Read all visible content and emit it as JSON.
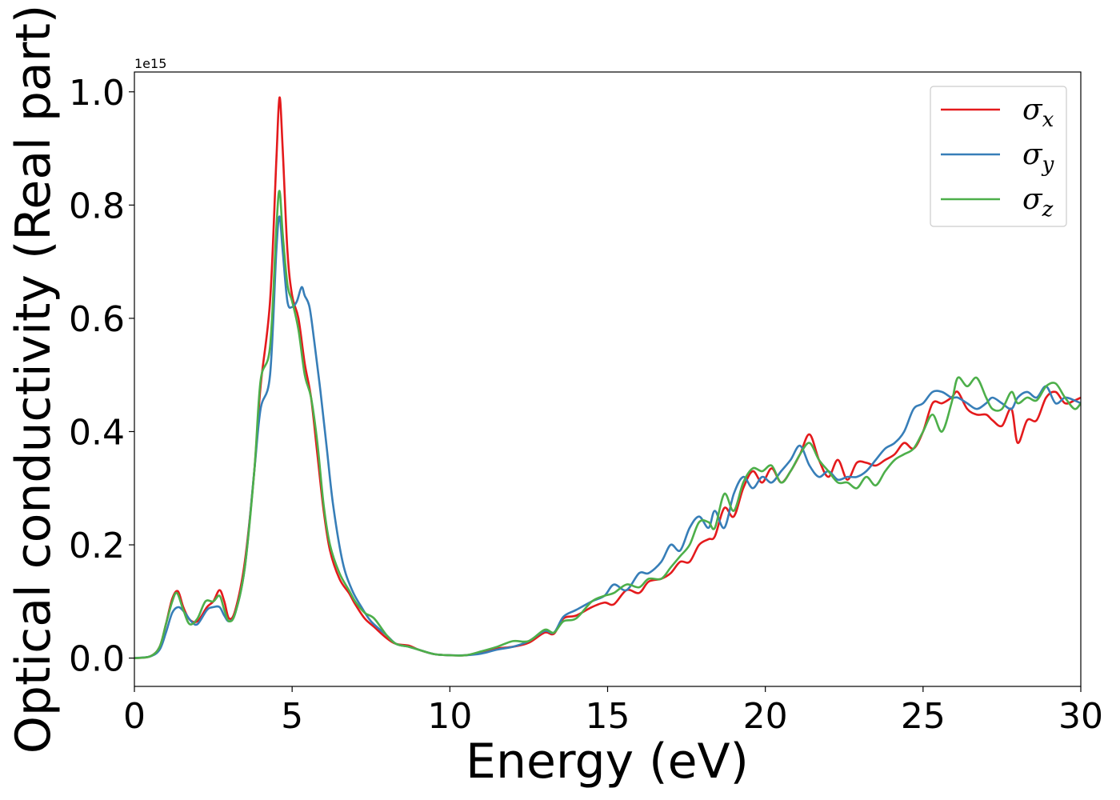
{
  "chart_data": {
    "type": "line",
    "title": "",
    "xlabel": "Energy (eV)",
    "ylabel": "Optical conductivity (Real part)",
    "y_offset_label": "1e15",
    "xlim": [
      0,
      30
    ],
    "ylim": [
      -0.05,
      1.035
    ],
    "xticks": [
      0,
      5,
      10,
      15,
      20,
      25,
      30
    ],
    "xtick_labels": [
      "0",
      "5",
      "10",
      "15",
      "20",
      "25",
      "30"
    ],
    "yticks": [
      0.0,
      0.2,
      0.4,
      0.6,
      0.8,
      1.0
    ],
    "ytick_labels": [
      "0.0",
      "0.2",
      "0.4",
      "0.6",
      "0.8",
      "1.0"
    ],
    "grid": false,
    "legend_position": "top-right",
    "series": [
      {
        "name": "σx",
        "base": "σ",
        "sub": "x",
        "color": "#e41a1c",
        "x": [
          0,
          0.5,
          0.8,
          1.0,
          1.2,
          1.38,
          1.55,
          1.75,
          2.0,
          2.3,
          2.5,
          2.7,
          2.85,
          3.0,
          3.2,
          3.5,
          3.8,
          4.0,
          4.3,
          4.5,
          4.6,
          4.7,
          4.85,
          5.0,
          5.2,
          5.4,
          5.6,
          5.8,
          6.0,
          6.2,
          6.5,
          6.8,
          7.0,
          7.3,
          7.6,
          8.0,
          8.3,
          8.7,
          9.0,
          9.5,
          10.0,
          10.5,
          11.0,
          11.5,
          12.0,
          12.5,
          13.0,
          13.3,
          13.6,
          14.0,
          14.5,
          14.9,
          15.2,
          15.6,
          16.0,
          16.3,
          16.7,
          17.0,
          17.3,
          17.6,
          17.9,
          18.2,
          18.4,
          18.7,
          19.0,
          19.3,
          19.6,
          19.9,
          20.2,
          20.5,
          20.8,
          21.1,
          21.4,
          21.7,
          22.0,
          22.3,
          22.6,
          22.9,
          23.2,
          23.5,
          23.8,
          24.1,
          24.4,
          24.7,
          25.0,
          25.3,
          25.6,
          25.9,
          26.1,
          26.4,
          26.7,
          27.0,
          27.2,
          27.5,
          27.8,
          28.0,
          28.3,
          28.6,
          28.9,
          29.2,
          29.5,
          29.8,
          30.0
        ],
        "values": [
          0.0,
          0.003,
          0.02,
          0.06,
          0.105,
          0.118,
          0.09,
          0.068,
          0.065,
          0.09,
          0.1,
          0.12,
          0.1,
          0.07,
          0.085,
          0.17,
          0.33,
          0.48,
          0.63,
          0.88,
          0.99,
          0.9,
          0.72,
          0.64,
          0.6,
          0.52,
          0.46,
          0.36,
          0.26,
          0.19,
          0.14,
          0.115,
          0.095,
          0.07,
          0.055,
          0.035,
          0.025,
          0.022,
          0.015,
          0.007,
          0.005,
          0.005,
          0.01,
          0.017,
          0.02,
          0.027,
          0.045,
          0.043,
          0.07,
          0.075,
          0.09,
          0.098,
          0.095,
          0.12,
          0.115,
          0.135,
          0.14,
          0.15,
          0.17,
          0.17,
          0.2,
          0.21,
          0.215,
          0.265,
          0.25,
          0.3,
          0.33,
          0.31,
          0.335,
          0.31,
          0.33,
          0.36,
          0.395,
          0.35,
          0.32,
          0.35,
          0.315,
          0.345,
          0.345,
          0.34,
          0.35,
          0.36,
          0.38,
          0.37,
          0.4,
          0.45,
          0.45,
          0.46,
          0.47,
          0.44,
          0.43,
          0.43,
          0.42,
          0.41,
          0.44,
          0.38,
          0.42,
          0.42,
          0.46,
          0.47,
          0.45,
          0.455,
          0.46
        ]
      },
      {
        "name": "σy",
        "base": "σ",
        "sub": "y",
        "color": "#377eb8",
        "x": [
          0,
          0.5,
          0.8,
          1.0,
          1.2,
          1.4,
          1.6,
          1.8,
          2.0,
          2.3,
          2.5,
          2.7,
          2.85,
          3.0,
          3.2,
          3.5,
          3.8,
          4.0,
          4.3,
          4.5,
          4.6,
          4.7,
          4.85,
          5.0,
          5.15,
          5.3,
          5.4,
          5.55,
          5.7,
          5.9,
          6.1,
          6.3,
          6.6,
          6.9,
          7.2,
          7.5,
          8.0,
          8.3,
          8.7,
          9.0,
          9.5,
          10.0,
          10.5,
          11.0,
          11.5,
          12.0,
          12.5,
          13.0,
          13.3,
          13.6,
          14.0,
          14.5,
          14.9,
          15.2,
          15.6,
          16.0,
          16.3,
          16.7,
          17.0,
          17.3,
          17.6,
          17.9,
          18.2,
          18.4,
          18.7,
          19.0,
          19.3,
          19.6,
          19.9,
          20.2,
          20.5,
          20.8,
          21.1,
          21.4,
          21.7,
          22.0,
          22.3,
          22.6,
          22.9,
          23.2,
          23.5,
          23.8,
          24.1,
          24.4,
          24.7,
          25.0,
          25.3,
          25.6,
          25.9,
          26.1,
          26.4,
          26.7,
          27.0,
          27.2,
          27.5,
          27.8,
          28.0,
          28.3,
          28.6,
          28.9,
          29.2,
          29.5,
          29.8,
          30.0
        ],
        "values": [
          0.0,
          0.003,
          0.015,
          0.045,
          0.08,
          0.09,
          0.08,
          0.065,
          0.06,
          0.085,
          0.09,
          0.09,
          0.075,
          0.065,
          0.08,
          0.16,
          0.33,
          0.44,
          0.5,
          0.72,
          0.78,
          0.72,
          0.63,
          0.62,
          0.63,
          0.655,
          0.64,
          0.62,
          0.56,
          0.47,
          0.37,
          0.27,
          0.17,
          0.12,
          0.09,
          0.065,
          0.04,
          0.025,
          0.02,
          0.015,
          0.007,
          0.005,
          0.005,
          0.008,
          0.015,
          0.02,
          0.03,
          0.048,
          0.045,
          0.073,
          0.085,
          0.1,
          0.11,
          0.13,
          0.12,
          0.15,
          0.15,
          0.17,
          0.2,
          0.19,
          0.23,
          0.25,
          0.23,
          0.26,
          0.23,
          0.29,
          0.32,
          0.3,
          0.32,
          0.31,
          0.33,
          0.35,
          0.375,
          0.34,
          0.32,
          0.33,
          0.315,
          0.32,
          0.32,
          0.33,
          0.35,
          0.37,
          0.38,
          0.4,
          0.44,
          0.45,
          0.47,
          0.47,
          0.46,
          0.46,
          0.45,
          0.44,
          0.45,
          0.46,
          0.45,
          0.44,
          0.46,
          0.47,
          0.46,
          0.48,
          0.45,
          0.46,
          0.455,
          0.45
        ]
      },
      {
        "name": "σz",
        "base": "σ",
        "sub": "z",
        "color": "#4daf4a",
        "x": [
          0,
          0.5,
          0.8,
          1.0,
          1.2,
          1.35,
          1.55,
          1.75,
          2.0,
          2.25,
          2.5,
          2.7,
          2.85,
          3.0,
          3.2,
          3.5,
          3.8,
          4.0,
          4.3,
          4.5,
          4.6,
          4.7,
          4.85,
          5.0,
          5.2,
          5.4,
          5.6,
          5.8,
          6.0,
          6.2,
          6.5,
          6.8,
          7.0,
          7.3,
          7.6,
          8.0,
          8.3,
          8.7,
          9.0,
          9.5,
          10.0,
          10.5,
          11.0,
          11.5,
          12.0,
          12.5,
          13.0,
          13.3,
          13.6,
          14.0,
          14.5,
          14.9,
          15.2,
          15.6,
          16.0,
          16.3,
          16.7,
          17.0,
          17.3,
          17.6,
          17.9,
          18.2,
          18.4,
          18.7,
          19.0,
          19.3,
          19.6,
          19.9,
          20.2,
          20.5,
          20.8,
          21.1,
          21.4,
          21.7,
          22.0,
          22.3,
          22.6,
          22.9,
          23.2,
          23.5,
          23.8,
          24.1,
          24.4,
          24.7,
          25.0,
          25.3,
          25.6,
          25.9,
          26.1,
          26.4,
          26.7,
          27.0,
          27.2,
          27.5,
          27.8,
          28.0,
          28.3,
          28.6,
          28.9,
          29.2,
          29.5,
          29.8,
          30.0
        ],
        "values": [
          0.0,
          0.003,
          0.02,
          0.06,
          0.1,
          0.115,
          0.085,
          0.06,
          0.07,
          0.1,
          0.1,
          0.11,
          0.085,
          0.065,
          0.08,
          0.16,
          0.33,
          0.49,
          0.55,
          0.76,
          0.825,
          0.75,
          0.66,
          0.63,
          0.58,
          0.5,
          0.46,
          0.38,
          0.27,
          0.2,
          0.15,
          0.12,
          0.1,
          0.08,
          0.07,
          0.04,
          0.025,
          0.02,
          0.015,
          0.007,
          0.005,
          0.005,
          0.012,
          0.02,
          0.03,
          0.03,
          0.05,
          0.045,
          0.065,
          0.07,
          0.1,
          0.11,
          0.115,
          0.13,
          0.125,
          0.14,
          0.14,
          0.16,
          0.18,
          0.2,
          0.24,
          0.24,
          0.23,
          0.29,
          0.26,
          0.31,
          0.335,
          0.33,
          0.34,
          0.31,
          0.33,
          0.36,
          0.38,
          0.35,
          0.33,
          0.31,
          0.31,
          0.3,
          0.32,
          0.305,
          0.33,
          0.35,
          0.36,
          0.37,
          0.4,
          0.43,
          0.4,
          0.45,
          0.495,
          0.48,
          0.495,
          0.46,
          0.44,
          0.44,
          0.47,
          0.45,
          0.46,
          0.455,
          0.48,
          0.485,
          0.46,
          0.44,
          0.45
        ]
      }
    ]
  }
}
